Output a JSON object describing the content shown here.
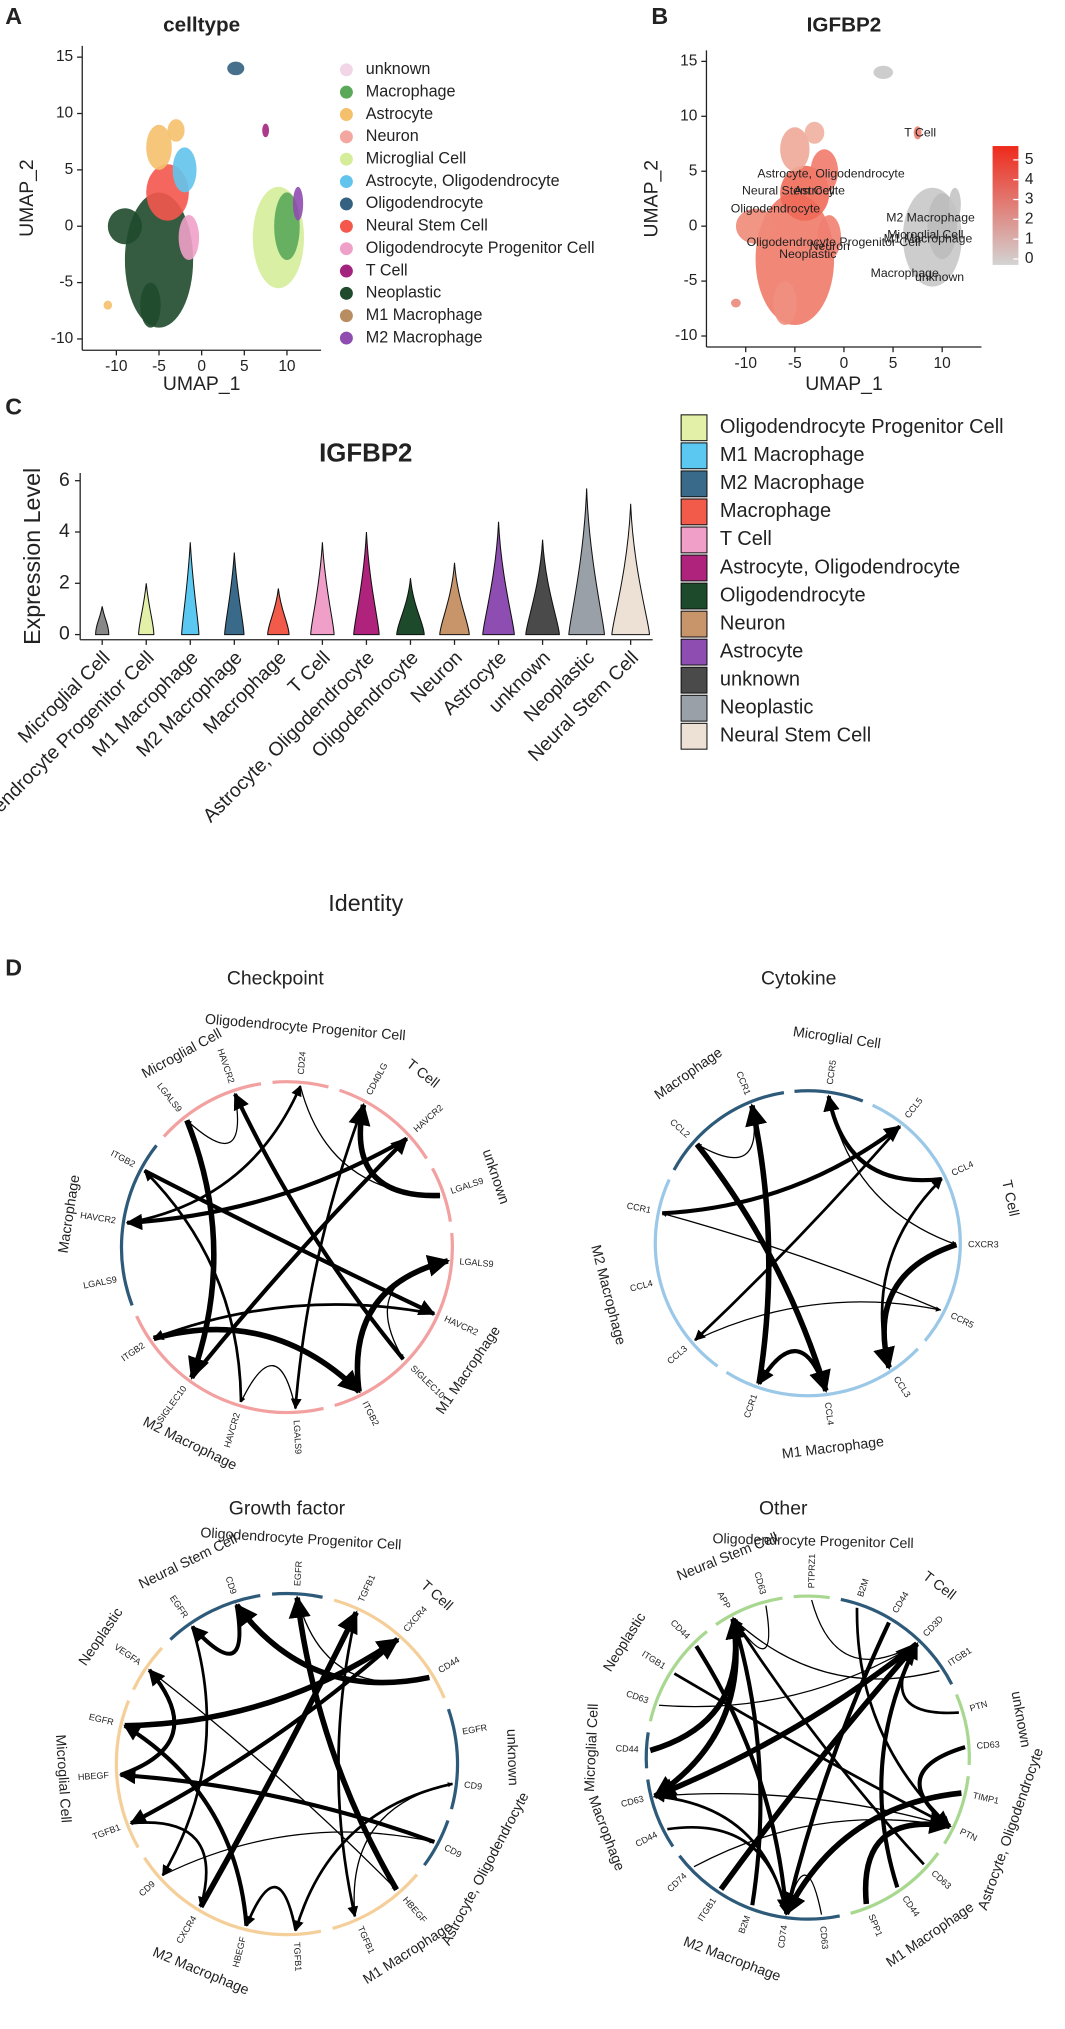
{
  "panel_labels": [
    "A",
    "B",
    "C",
    "D"
  ],
  "chart_data": [
    {
      "type": "scatter",
      "title": "celltype",
      "x_label": "UMAP_1",
      "y_label": "UMAP_2",
      "xlim": [
        -14,
        14
      ],
      "ylim": [
        -11,
        16
      ],
      "xticks": [
        -10,
        -5,
        0,
        5,
        10
      ],
      "yticks": [
        -10,
        -5,
        0,
        5,
        10,
        15
      ],
      "legend": [
        {
          "name": "unknown",
          "color": "#f2d6e8"
        },
        {
          "name": "Macrophage",
          "color": "#5aa85a"
        },
        {
          "name": "Astrocyte",
          "color": "#f5c06b"
        },
        {
          "name": "Neuron",
          "color": "#f4a6a0"
        },
        {
          "name": "Microglial Cell",
          "color": "#d5ed9a"
        },
        {
          "name": "Astrocyte, Oligodendrocyte",
          "color": "#62c4ec"
        },
        {
          "name": "Oligodendrocyte",
          "color": "#33617f"
        },
        {
          "name": "Neural Stem Cell",
          "color": "#f4574c"
        },
        {
          "name": "Oligodendrocyte Progenitor Cell",
          "color": "#efa0c8"
        },
        {
          "name": "T Cell",
          "color": "#a3247d"
        },
        {
          "name": "Neoplastic",
          "color": "#1f4a2c"
        },
        {
          "name": "M1 Macrophage",
          "color": "#b88d61"
        },
        {
          "name": "M2 Macrophage",
          "color": "#8f4db0"
        }
      ]
    },
    {
      "type": "scatter",
      "title": "IGFBP2",
      "x_label": "UMAP_1",
      "y_label": "UMAP_2",
      "xlim": [
        -14,
        14
      ],
      "ylim": [
        -11,
        16
      ],
      "xticks": [
        -10,
        -5,
        0,
        5,
        10
      ],
      "yticks": [
        -10,
        -5,
        0,
        5,
        10,
        15
      ],
      "colorbar": {
        "lim": [
          -0.3,
          5.7
        ],
        "ticks": [
          0,
          1,
          2,
          3,
          4,
          5
        ],
        "colors": [
          "#d3d3d3",
          "#ee2a1b"
        ]
      },
      "cluster_labels": [
        "T Cell",
        "Astrocyte, Oligodendrocyte",
        "Neural Stem Cell",
        "Astrocyte",
        "Oligodendrocyte",
        "M2 Macrophage",
        "Microglial Cell",
        "M1 Macrophage",
        "Oligodendrocyte Progenitor Cell",
        "Neuron",
        "Neoplastic",
        "Macrophage",
        "unknown"
      ]
    },
    {
      "type": "violin",
      "title": "IGFBP2",
      "y_label": "Expression Level",
      "x_label": "Identity",
      "ylim": [
        -0.2,
        6.3
      ],
      "yticks": [
        0,
        2,
        4,
        6
      ],
      "categories": [
        "Microglial Cell",
        "Oligodendrocyte Progenitor Cell",
        "M1 Macrophage",
        "M2 Macrophage",
        "Macrophage",
        "T Cell",
        "Astrocyte, Oligodendrocyte",
        "Oligodendrocyte",
        "Neuron",
        "Astrocyte",
        "unknown",
        "Neoplastic",
        "Neural Stem Cell"
      ],
      "values": [
        1.1,
        2.0,
        3.6,
        3.2,
        1.8,
        3.6,
        4.0,
        2.2,
        2.8,
        4.4,
        3.7,
        5.7,
        5.1
      ],
      "legend": [
        {
          "name": "Oligodendrocyte Progenitor Cell",
          "color": "#e2f0a8"
        },
        {
          "name": "M1 Macrophage",
          "color": "#5ac8f0"
        },
        {
          "name": "M2 Macrophage",
          "color": "#3a6a8a"
        },
        {
          "name": "Macrophage",
          "color": "#f25a4a"
        },
        {
          "name": "T Cell",
          "color": "#f0a0c8"
        },
        {
          "name": "Astrocyte, Oligodendrocyte",
          "color": "#b0237d"
        },
        {
          "name": "Oligodendrocyte",
          "color": "#1e4a2c"
        },
        {
          "name": "Neuron",
          "color": "#c8956a"
        },
        {
          "name": "Astrocyte",
          "color": "#8e4db0"
        },
        {
          "name": "unknown",
          "color": "#4a4a4a"
        },
        {
          "name": "Neoplastic",
          "color": "#9aa0a8"
        },
        {
          "name": "Neural Stem Cell",
          "color": "#ede0d4"
        }
      ]
    }
  ],
  "chord_diagrams": [
    {
      "title": "Checkpoint",
      "sectors": [
        {
          "name": "Oligodendrocyte Progenitor Cell",
          "color": "#f2a0a0",
          "genes": [
            "CD24"
          ]
        },
        {
          "name": "T Cell",
          "color": "#f2a0a0",
          "genes": [
            "CD40LG",
            "HAVCR2"
          ]
        },
        {
          "name": "unknown",
          "color": "#f2a0a0",
          "genes": [
            "LGALS9"
          ]
        },
        {
          "name": "M1 Macrophage",
          "color": "#f2a0a0",
          "genes": [
            "LGALS9",
            "HAVCR2",
            "SIGLEC10",
            "ITGB2"
          ]
        },
        {
          "name": "M2 Macrophage",
          "color": "#f2a0a0",
          "genes": [
            "LGALS9",
            "HAVCR2",
            "SIGLEC10",
            "ITGB2"
          ]
        },
        {
          "name": "Macrophage",
          "color": "#2e5a7a",
          "genes": [
            "LGALS9",
            "HAVCR2",
            "ITGB2"
          ]
        },
        {
          "name": "Microglial Cell",
          "color": "#f2a0a0",
          "genes": [
            "LGALS9",
            "HAVCR2"
          ]
        }
      ]
    },
    {
      "title": "Cytokine",
      "sectors": [
        {
          "name": "Microglial Cell",
          "color": "#2e5a7a",
          "genes": [
            "CCR5"
          ]
        },
        {
          "name": "T Cell",
          "color": "#9cc8e8",
          "genes": [
            "CCL5",
            "CCL4",
            "CXCR3",
            "CCR5"
          ]
        },
        {
          "name": "M1 Macrophage",
          "color": "#9cc8e8",
          "genes": [
            "CCL3",
            "CCL4",
            "CCR1"
          ]
        },
        {
          "name": "M2 Macrophage",
          "color": "#9cc8e8",
          "genes": [
            "CCL3",
            "CCL4",
            "CCR1"
          ]
        },
        {
          "name": "Macrophage",
          "color": "#2e5a7a",
          "genes": [
            "CCL2",
            "CCR1"
          ]
        }
      ]
    },
    {
      "title": "Growth factor",
      "sectors": [
        {
          "name": "Oligodendrocyte Progenitor Cell",
          "color": "#2e5a7a",
          "genes": [
            "EGFR"
          ]
        },
        {
          "name": "T Cell",
          "color": "#f5cf9a",
          "genes": [
            "TGFB1",
            "CXCR4",
            "CD44"
          ]
        },
        {
          "name": "unknown",
          "color": "#2e5a7a",
          "genes": [
            "EGFR",
            "CD9"
          ]
        },
        {
          "name": "Astrocyte, Oligodendrocyte",
          "color": "#2e5a7a",
          "genes": [
            "CD9"
          ]
        },
        {
          "name": "M1 Macrophage",
          "color": "#f5cf9a",
          "genes": [
            "HBEGF",
            "TGFB1"
          ]
        },
        {
          "name": "M2 Macrophage",
          "color": "#f5cf9a",
          "genes": [
            "TGFB1",
            "HBEGF",
            "CXCR4",
            "CD9"
          ]
        },
        {
          "name": "Microglial Cell",
          "color": "#f5cf9a",
          "genes": [
            "TGFB1",
            "HBEGF",
            "EGFR"
          ]
        },
        {
          "name": "Neoplastic",
          "color": "#f5cf9a",
          "genes": [
            "VEGFA"
          ]
        },
        {
          "name": "Neural Stem Cell",
          "color": "#2e5a7a",
          "genes": [
            "EGFR",
            "CD9"
          ]
        }
      ]
    },
    {
      "title": "Other",
      "sectors": [
        {
          "name": "Oligodendrocyte Progenitor Cell",
          "color": "#a8d890",
          "genes": [
            "PTPRZ1"
          ]
        },
        {
          "name": "T Cell",
          "color": "#2e5a7a",
          "genes": [
            "B2M",
            "CD44",
            "CD3D",
            "ITGB1"
          ]
        },
        {
          "name": "unknown",
          "color": "#a8d890",
          "genes": [
            "PTN",
            "CD63"
          ]
        },
        {
          "name": "Astrocyte, Oligodendrocyte",
          "color": "#a8d890",
          "genes": [
            "TIMP1",
            "PTN"
          ]
        },
        {
          "name": "M1 Macrophage",
          "color": "#a8d890",
          "genes": [
            "CD63",
            "CD44",
            "SPP1"
          ]
        },
        {
          "name": "M2 Macrophage",
          "color": "#2e5a7a",
          "genes": [
            "CD63",
            "CD74",
            "B2M",
            "ITGB1",
            "CD74"
          ]
        },
        {
          "name": "Macrophage",
          "color": "#2e5a7a",
          "genes": [
            "CD44",
            "CD63"
          ]
        },
        {
          "name": "Microglial Cell",
          "color": "#2e5a7a",
          "genes": [
            "CD44"
          ]
        },
        {
          "name": "Neoplastic",
          "color": "#a8d890",
          "genes": [
            "CD63",
            "ITGB1",
            "CD44"
          ]
        },
        {
          "name": "Neural Stem Cell",
          "color": "#a8d890",
          "genes": [
            "APP",
            "CD63"
          ]
        }
      ]
    }
  ]
}
